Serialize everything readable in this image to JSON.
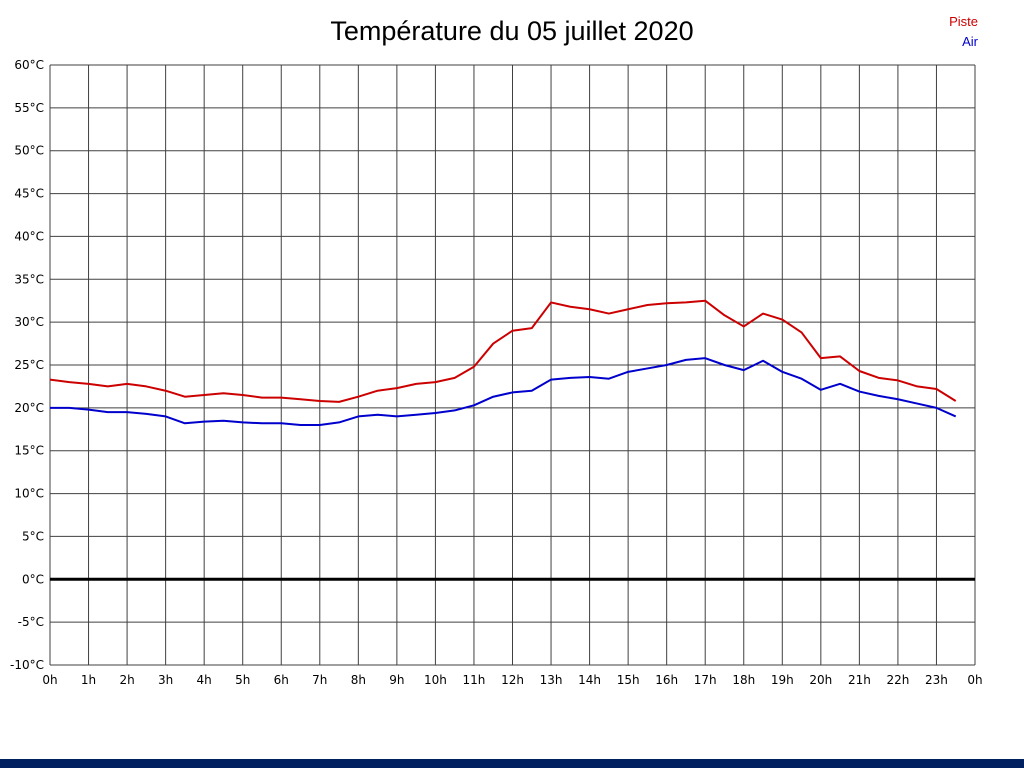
{
  "colors": {
    "piste_line": "#cc0000",
    "air_line": "#0000cc",
    "grid": "#404040",
    "zero_line": "#000000",
    "bottom_bar": "#002060"
  },
  "legend": {
    "items": [
      {
        "label": "Piste",
        "color": "#cc0000"
      },
      {
        "label": "Air",
        "color": "#0000cc"
      }
    ]
  },
  "chart_data": {
    "type": "line",
    "title": "Température du 05 juillet 2020",
    "xlabel": "",
    "ylabel": "",
    "ylim": [
      -10,
      60
    ],
    "ytick_step": 5,
    "grid": true,
    "legend_position": "top-right",
    "x_labels": [
      "0h",
      "1h",
      "2h",
      "3h",
      "4h",
      "5h",
      "6h",
      "7h",
      "8h",
      "9h",
      "10h",
      "11h",
      "12h",
      "13h",
      "14h",
      "15h",
      "16h",
      "17h",
      "18h",
      "19h",
      "20h",
      "21h",
      "22h",
      "23h",
      "0h"
    ],
    "y_labels": [
      "60°C",
      "55°C",
      "50°C",
      "45°C",
      "40°C",
      "35°C",
      "30°C",
      "25°C",
      "20°C",
      "15°C",
      "10°C",
      "5°C",
      "0°C",
      "-5°C",
      "-10°C"
    ],
    "x": [
      0,
      0.5,
      1,
      1.5,
      2,
      2.5,
      3,
      3.5,
      4,
      4.5,
      5,
      5.5,
      6,
      6.5,
      7,
      7.5,
      8,
      8.5,
      9,
      9.5,
      10,
      10.5,
      11,
      11.5,
      12,
      12.5,
      13,
      13.5,
      14,
      14.5,
      15,
      15.5,
      16,
      16.5,
      17,
      17.5,
      18,
      18.5,
      19,
      19.5,
      20,
      20.5,
      21,
      21.5,
      22,
      22.5,
      23,
      23.5
    ],
    "series": [
      {
        "name": "Piste",
        "color": "#cc0000",
        "values": [
          23.3,
          23.0,
          22.8,
          22.5,
          22.8,
          22.5,
          22.0,
          21.3,
          21.5,
          21.7,
          21.5,
          21.2,
          21.2,
          21.0,
          20.8,
          20.7,
          21.3,
          22.0,
          22.3,
          22.8,
          23.0,
          23.5,
          24.8,
          27.5,
          29.0,
          29.3,
          32.3,
          31.8,
          31.5,
          31.0,
          31.5,
          32.0,
          32.2,
          32.3,
          32.5,
          30.8,
          29.5,
          31.0,
          30.3,
          28.8,
          25.8,
          26.0,
          24.3,
          23.5,
          23.2,
          22.5,
          22.2,
          20.8
        ]
      },
      {
        "name": "Air",
        "color": "#0000cc",
        "values": [
          20.0,
          20.0,
          19.8,
          19.5,
          19.5,
          19.3,
          19.0,
          18.2,
          18.4,
          18.5,
          18.3,
          18.2,
          18.2,
          18.0,
          18.0,
          18.3,
          19.0,
          19.2,
          19.0,
          19.2,
          19.4,
          19.7,
          20.3,
          21.3,
          21.8,
          22.0,
          23.3,
          23.5,
          23.6,
          23.4,
          24.2,
          24.6,
          25.0,
          25.6,
          25.8,
          25.0,
          24.4,
          25.5,
          24.2,
          23.4,
          22.1,
          22.8,
          21.9,
          21.4,
          21.0,
          20.5,
          20.0,
          19.0
        ]
      }
    ]
  }
}
